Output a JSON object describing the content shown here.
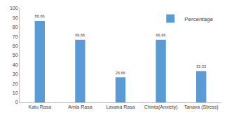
{
  "chart_data": {
    "type": "bar",
    "categories": [
      "Katu Rasa",
      "Amla Rasa",
      "Lavana Rasa",
      "Chinta(Anxiety)",
      "Tanava (Stress)"
    ],
    "series": [
      {
        "name": "Percentage",
        "color": "#5b9bd5",
        "values": [
          86.66,
          66.66,
          26.66,
          66.66,
          33.33
        ]
      }
    ],
    "ylim": [
      0,
      100
    ],
    "yticks": [
      0,
      10,
      20,
      30,
      40,
      50,
      60,
      70,
      80,
      90,
      100
    ],
    "grid": false,
    "legend": "top right",
    "data_labels": true
  }
}
